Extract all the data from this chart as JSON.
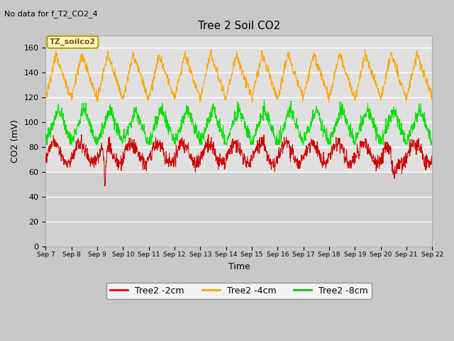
{
  "title": "Tree 2 Soil CO2",
  "no_data_text": "No data for f_T2_CO2_4",
  "xlabel": "Time",
  "ylabel": "CO2 (mV)",
  "ylim": [
    0,
    170
  ],
  "yticks": [
    0,
    20,
    40,
    60,
    80,
    100,
    120,
    140,
    160
  ],
  "xtick_labels": [
    "Sep 7",
    "Sep 8",
    "Sep 9",
    "Sep 10",
    "Sep 11",
    "Sep 12",
    "Sep 13",
    "Sep 14",
    "Sep 15",
    "Sep 16",
    "Sep 17",
    "Sep 18",
    "Sep 19",
    "Sep 20",
    "Sep 21",
    "Sep 22"
  ],
  "xtick_labels_display": [
    "Sep 7",
    "Sep 8",
    "Sep 9",
    "Sep10",
    "Sep 11",
    "Sep 12",
    "Sep 13",
    "Sep 14",
    "Sep 15",
    "Sep 16",
    "Sep 17",
    "Sep 18",
    "Sep 19",
    "Sep 20",
    "Sep 21",
    "Sep 22"
  ],
  "legend_label": "TZ_soilco2",
  "legend_entries": [
    "Tree2 -2cm",
    "Tree2 -4cm",
    "Tree2 -8cm"
  ],
  "legend_colors": [
    "#ff0000",
    "#ffa500",
    "#00cc00"
  ],
  "background_color": "#c8c8c8",
  "plot_bg_upper_color": "#e8e8e8",
  "plot_bg_lower_color": "#d8d8d8",
  "line_colors": {
    "2cm": "#cc0000",
    "4cm": "#ffa500",
    "8cm": "#00dd00"
  },
  "num_days": 15,
  "seed": 42,
  "figsize": [
    6.4,
    4.8
  ],
  "dpi": 100
}
